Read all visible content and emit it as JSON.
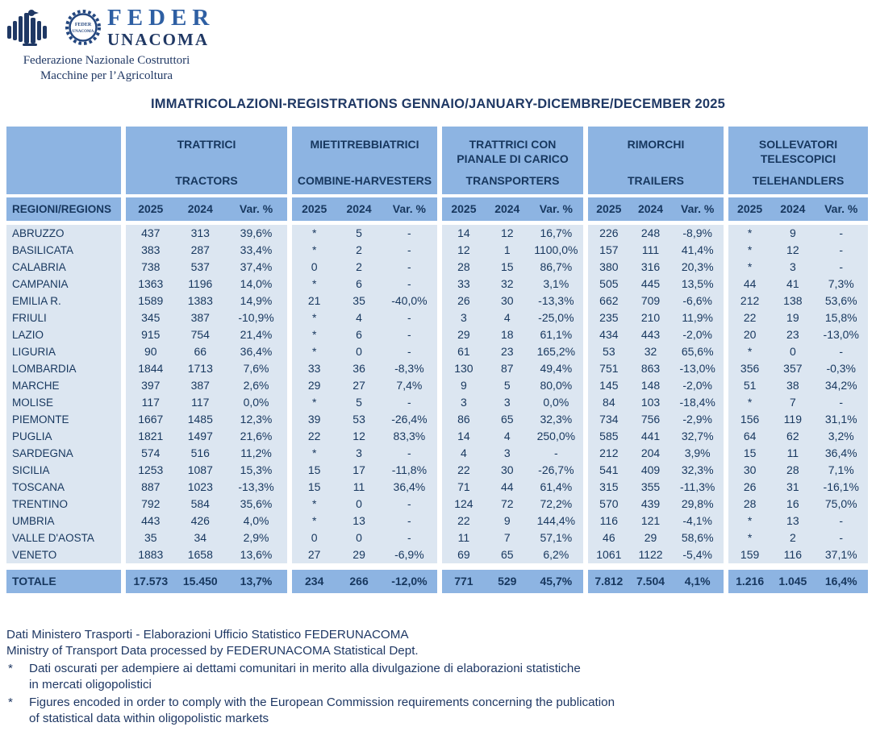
{
  "logo": {
    "brand_top": "FEDER",
    "brand_bottom": "UNACOMA",
    "tagline_line1": "Federazione Nazionale Costruttori",
    "tagline_line2": "Macchine per l’Agricoltura",
    "eagle_icon": "confindustria-eagle",
    "gear_icon": "federunacoma-gear-emblem"
  },
  "title": "IMMATRICOLAZIONI-REGISTRATIONS GENNAIO/JANUARY-DICEMBRE/DECEMBER 2025",
  "colors": {
    "header_blue": "#8db4e2",
    "row_light_blue": "#dce6f1",
    "text_navy": "#17375e"
  },
  "table": {
    "region_header": "REGIONI/REGIONS",
    "col_headers": [
      "2025",
      "2024",
      "Var. %"
    ],
    "groups": [
      {
        "it": "TRATTRICI",
        "en": "TRACTORS"
      },
      {
        "it": "MIETITREBBIATRICI",
        "en": "COMBINE-HARVESTERS"
      },
      {
        "it": "TRATTRICI CON PIANALE DI CARICO",
        "en": "TRANSPORTERS"
      },
      {
        "it": "RIMORCHI",
        "en": "TRAILERS"
      },
      {
        "it": "SOLLEVATORI TELESCOPICI",
        "en": "TELEHANDLERS"
      }
    ],
    "rows": [
      {
        "region": "ABRUZZO",
        "cells": [
          "437",
          "313",
          "39,6%",
          "*",
          "5",
          "-",
          "14",
          "12",
          "16,7%",
          "226",
          "248",
          "-8,9%",
          "*",
          "9",
          "-"
        ]
      },
      {
        "region": "BASILICATA",
        "cells": [
          "383",
          "287",
          "33,4%",
          "*",
          "2",
          "-",
          "12",
          "1",
          "1100,0%",
          "157",
          "111",
          "41,4%",
          "*",
          "12",
          "-"
        ]
      },
      {
        "region": "CALABRIA",
        "cells": [
          "738",
          "537",
          "37,4%",
          "0",
          "2",
          "-",
          "28",
          "15",
          "86,7%",
          "380",
          "316",
          "20,3%",
          "*",
          "3",
          "-"
        ]
      },
      {
        "region": "CAMPANIA",
        "cells": [
          "1363",
          "1196",
          "14,0%",
          "*",
          "6",
          "-",
          "33",
          "32",
          "3,1%",
          "505",
          "445",
          "13,5%",
          "44",
          "41",
          "7,3%"
        ]
      },
      {
        "region": "EMILIA R.",
        "cells": [
          "1589",
          "1383",
          "14,9%",
          "21",
          "35",
          "-40,0%",
          "26",
          "30",
          "-13,3%",
          "662",
          "709",
          "-6,6%",
          "212",
          "138",
          "53,6%"
        ]
      },
      {
        "region": "FRIULI",
        "cells": [
          "345",
          "387",
          "-10,9%",
          "*",
          "4",
          "-",
          "3",
          "4",
          "-25,0%",
          "235",
          "210",
          "11,9%",
          "22",
          "19",
          "15,8%"
        ]
      },
      {
        "region": "LAZIO",
        "cells": [
          "915",
          "754",
          "21,4%",
          "*",
          "6",
          "-",
          "29",
          "18",
          "61,1%",
          "434",
          "443",
          "-2,0%",
          "20",
          "23",
          "-13,0%"
        ]
      },
      {
        "region": "LIGURIA",
        "cells": [
          "90",
          "66",
          "36,4%",
          "*",
          "0",
          "-",
          "61",
          "23",
          "165,2%",
          "53",
          "32",
          "65,6%",
          "*",
          "0",
          "-"
        ]
      },
      {
        "region": "LOMBARDIA",
        "cells": [
          "1844",
          "1713",
          "7,6%",
          "33",
          "36",
          "-8,3%",
          "130",
          "87",
          "49,4%",
          "751",
          "863",
          "-13,0%",
          "356",
          "357",
          "-0,3%"
        ]
      },
      {
        "region": "MARCHE",
        "cells": [
          "397",
          "387",
          "2,6%",
          "29",
          "27",
          "7,4%",
          "9",
          "5",
          "80,0%",
          "145",
          "148",
          "-2,0%",
          "51",
          "38",
          "34,2%"
        ]
      },
      {
        "region": "MOLISE",
        "cells": [
          "117",
          "117",
          "0,0%",
          "*",
          "5",
          "-",
          "3",
          "3",
          "0,0%",
          "84",
          "103",
          "-18,4%",
          "*",
          "7",
          "-"
        ]
      },
      {
        "region": "PIEMONTE",
        "cells": [
          "1667",
          "1485",
          "12,3%",
          "39",
          "53",
          "-26,4%",
          "86",
          "65",
          "32,3%",
          "734",
          "756",
          "-2,9%",
          "156",
          "119",
          "31,1%"
        ]
      },
      {
        "region": "PUGLIA",
        "cells": [
          "1821",
          "1497",
          "21,6%",
          "22",
          "12",
          "83,3%",
          "14",
          "4",
          "250,0%",
          "585",
          "441",
          "32,7%",
          "64",
          "62",
          "3,2%"
        ]
      },
      {
        "region": "SARDEGNA",
        "cells": [
          "574",
          "516",
          "11,2%",
          "*",
          "3",
          "-",
          "4",
          "3",
          "-",
          "212",
          "204",
          "3,9%",
          "15",
          "11",
          "36,4%"
        ]
      },
      {
        "region": "SICILIA",
        "cells": [
          "1253",
          "1087",
          "15,3%",
          "15",
          "17",
          "-11,8%",
          "22",
          "30",
          "-26,7%",
          "541",
          "409",
          "32,3%",
          "30",
          "28",
          "7,1%"
        ]
      },
      {
        "region": "TOSCANA",
        "cells": [
          "887",
          "1023",
          "-13,3%",
          "15",
          "11",
          "36,4%",
          "71",
          "44",
          "61,4%",
          "315",
          "355",
          "-11,3%",
          "26",
          "31",
          "-16,1%"
        ]
      },
      {
        "region": "TRENTINO",
        "cells": [
          "792",
          "584",
          "35,6%",
          "*",
          "0",
          "-",
          "124",
          "72",
          "72,2%",
          "570",
          "439",
          "29,8%",
          "28",
          "16",
          "75,0%"
        ]
      },
      {
        "region": "UMBRIA",
        "cells": [
          "443",
          "426",
          "4,0%",
          "*",
          "13",
          "-",
          "22",
          "9",
          "144,4%",
          "116",
          "121",
          "-4,1%",
          "*",
          "13",
          "-"
        ]
      },
      {
        "region": "VALLE D'AOSTA",
        "cells": [
          "35",
          "34",
          "2,9%",
          "0",
          "0",
          "-",
          "11",
          "7",
          "57,1%",
          "46",
          "29",
          "58,6%",
          "*",
          "2",
          "-"
        ]
      },
      {
        "region": "VENETO",
        "cells": [
          "1883",
          "1658",
          "13,6%",
          "27",
          "29",
          "-6,9%",
          "69",
          "65",
          "6,2%",
          "1061",
          "1122",
          "-5,4%",
          "159",
          "116",
          "37,1%"
        ]
      }
    ],
    "total": {
      "region": "TOTALE",
      "cells": [
        "17.573",
        "15.450",
        "13,7%",
        "234",
        "266",
        "-12,0%",
        "771",
        "529",
        "45,7%",
        "7.812",
        "7.504",
        "4,1%",
        "1.216",
        "1.045",
        "16,4%"
      ]
    }
  },
  "footer": {
    "source_it": "Dati Ministero Trasporti - Elaborazioni Ufficio Statistico FEDERUNACOMA",
    "source_en": "Ministry of Transport Data processed by FEDERUNACOMA Statistical Dept.",
    "note1_marker": "*",
    "note1": "Dati oscurati per adempiere ai dettami comunitari in merito alla divulgazione di elaborazioni statistiche\nin mercati oligopolistici",
    "note2_marker": "*",
    "note2": "Figures encoded in order to comply with the European Commission requirements concerning the publication\nof statistical data within oligopolistic markets"
  }
}
